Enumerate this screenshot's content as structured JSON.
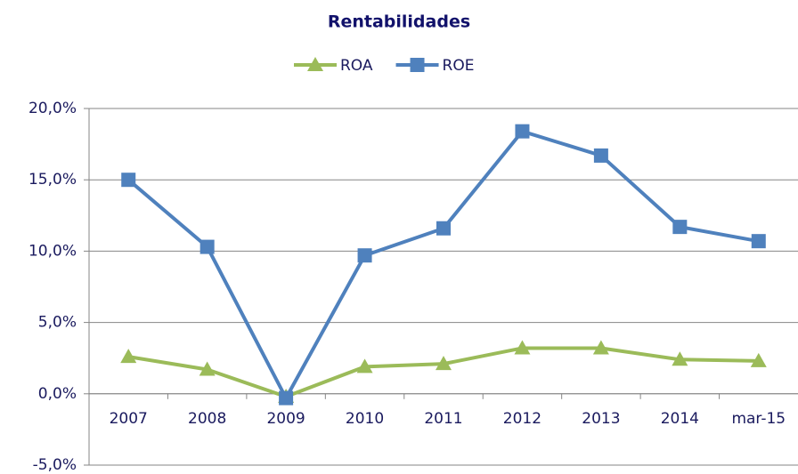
{
  "chart_data": {
    "type": "line",
    "title": "Rentabilidades",
    "categories": [
      "2007",
      "2008",
      "2009",
      "2010",
      "2011",
      "2012",
      "2013",
      "2014",
      "mar-15"
    ],
    "series": [
      {
        "name": "ROA",
        "color": "#9bbb59",
        "marker": "triangle",
        "values": [
          2.6,
          1.7,
          -0.2,
          1.9,
          2.1,
          3.2,
          3.2,
          2.4,
          2.3
        ]
      },
      {
        "name": "ROE",
        "color": "#4f81bd",
        "marker": "square",
        "values": [
          15.0,
          10.3,
          -0.3,
          9.7,
          11.6,
          18.4,
          16.7,
          11.7,
          10.7
        ]
      }
    ],
    "ylim": [
      -5,
      20
    ],
    "yticks": [
      {
        "value": -5,
        "label": "-5,0%"
      },
      {
        "value": 0,
        "label": "0,0%"
      },
      {
        "value": 5,
        "label": "5,0%"
      },
      {
        "value": 10,
        "label": "10,0%"
      },
      {
        "value": 15,
        "label": "15,0%"
      },
      {
        "value": 20,
        "label": "20,0%"
      }
    ],
    "grid": true,
    "legend": "top"
  }
}
